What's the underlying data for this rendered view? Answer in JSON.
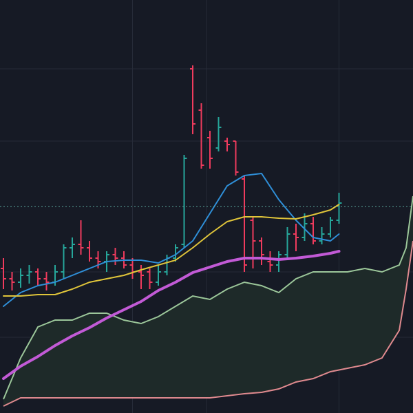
{
  "chart_data": {
    "type": "ohlc",
    "background": "#161a25",
    "xlim": [
      -0.4,
      47.6
    ],
    "ylim": [
      0,
      600
    ],
    "grid": true,
    "grid_color": "#262b38",
    "xticks": [
      15,
      23.6,
      39
    ],
    "yticks": [
      110,
      205,
      395,
      500
    ],
    "price_line": {
      "value": 300,
      "color": "#5aa59a"
    },
    "ohlc": {
      "up_color": "#26a69a",
      "down_color": "#ef3b5d",
      "x": [
        0,
        1,
        2,
        3,
        4,
        5,
        6,
        7,
        8,
        9,
        10,
        11,
        12,
        13,
        14,
        15,
        16,
        17,
        18,
        19,
        20,
        21,
        22,
        23,
        24,
        25,
        26,
        27,
        28,
        29,
        30,
        31,
        32,
        33,
        34,
        35,
        36,
        37,
        38,
        39
      ],
      "open": [
        210,
        195,
        190,
        200,
        205,
        195,
        190,
        205,
        240,
        245,
        240,
        225,
        220,
        230,
        225,
        215,
        205,
        205,
        190,
        205,
        225,
        245,
        500,
        440,
        400,
        385,
        395,
        395,
        340,
        280,
        250,
        220,
        215,
        230,
        260,
        255,
        275,
        250,
        260,
        280
      ],
      "high": [
        225,
        205,
        210,
        215,
        210,
        205,
        215,
        245,
        255,
        280,
        250,
        235,
        235,
        240,
        235,
        225,
        215,
        210,
        215,
        230,
        245,
        375,
        505,
        450,
        410,
        430,
        400,
        395,
        345,
        285,
        255,
        235,
        235,
        270,
        275,
        290,
        285,
        270,
        285,
        320
      ],
      "low": [
        180,
        178,
        182,
        188,
        185,
        178,
        185,
        195,
        225,
        230,
        220,
        210,
        205,
        215,
        210,
        195,
        180,
        180,
        185,
        200,
        220,
        240,
        405,
        355,
        355,
        380,
        380,
        345,
        205,
        210,
        215,
        205,
        205,
        225,
        235,
        250,
        245,
        245,
        255,
        275
      ],
      "close": [
        195,
        190,
        200,
        205,
        195,
        190,
        205,
        240,
        245,
        240,
        225,
        220,
        230,
        225,
        215,
        205,
        200,
        190,
        205,
        225,
        240,
        370,
        420,
        360,
        370,
        415,
        390,
        350,
        215,
        250,
        230,
        215,
        230,
        260,
        255,
        275,
        250,
        260,
        280,
        305
      ]
    },
    "ma_x": [
      0,
      2,
      4,
      6,
      8,
      10,
      12,
      14,
      16,
      18,
      20,
      22,
      24,
      26,
      28,
      30,
      32,
      34,
      36,
      38,
      39
    ],
    "series": [
      {
        "color": "#2f8fd8",
        "width": 2,
        "values": [
          155,
          175,
          185,
          190,
          200,
          210,
          220,
          222,
          222,
          218,
          230,
          250,
          290,
          330,
          345,
          348,
          310,
          280,
          255,
          250,
          260
        ]
      },
      {
        "color": "#e0c53a",
        "width": 2,
        "values": [
          170,
          170,
          172,
          172,
          180,
          190,
          195,
          200,
          208,
          215,
          222,
          240,
          260,
          278,
          285,
          285,
          283,
          282,
          288,
          295,
          303
        ]
      },
      {
        "color": "#c25ad6",
        "width": 4,
        "values": [
          50,
          68,
          82,
          98,
          112,
          124,
          138,
          150,
          162,
          178,
          190,
          204,
          212,
          220,
          225,
          225,
          223,
          225,
          228,
          232,
          235
        ]
      }
    ],
    "cloud": {
      "fill": "#1e2a29",
      "x": [
        0,
        2,
        4,
        6,
        8,
        10,
        12,
        14,
        16,
        18,
        20,
        22,
        24,
        26,
        28,
        30,
        32,
        34,
        36,
        38,
        40,
        42,
        44,
        46,
        46.8,
        47.6
      ],
      "upper": {
        "color": "#9cc79a",
        "values": [
          20,
          80,
          125,
          135,
          135,
          145,
          145,
          135,
          130,
          140,
          155,
          170,
          165,
          180,
          190,
          185,
          175,
          195,
          205,
          205,
          205,
          210,
          205,
          215,
          240,
          315
        ]
      },
      "lower": {
        "color": "#e08a8f",
        "values": [
          10,
          22,
          22,
          22,
          22,
          22,
          22,
          22,
          22,
          22,
          22,
          22,
          22,
          25,
          28,
          30,
          35,
          45,
          50,
          60,
          65,
          70,
          80,
          120,
          180,
          250
        ]
      }
    }
  }
}
